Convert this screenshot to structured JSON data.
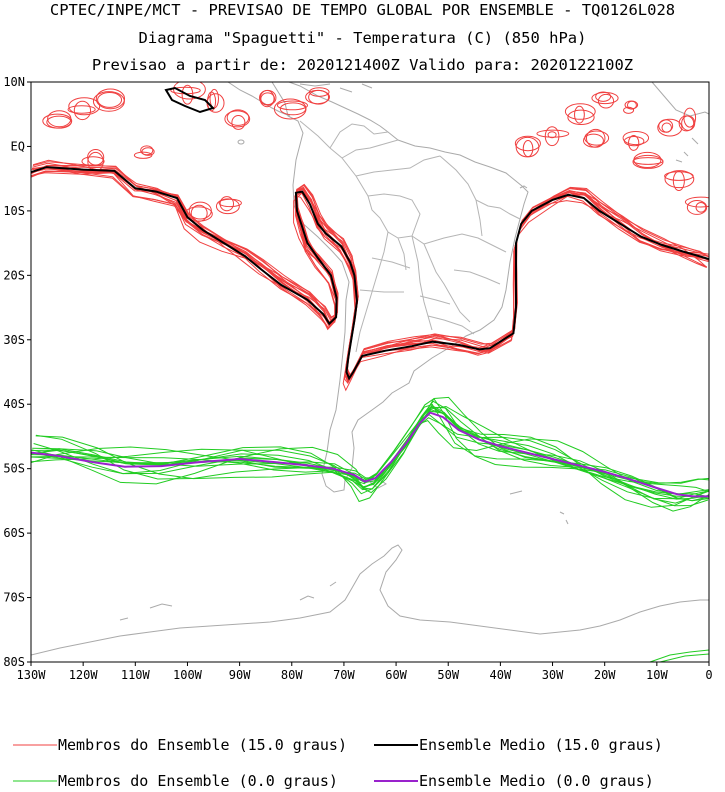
{
  "title": {
    "line1": "CPTEC/INPE/MCT - PREVISAO DE TEMPO GLOBAL POR ENSEMBLE - TQ0126L028",
    "line2": "Diagrama \"Spaguetti\" - Temperatura (C) (850 hPa)",
    "line3": "Previsao a partir de: 2020121400Z  Valido para: 2020122100Z"
  },
  "axes": {
    "lat_labels": [
      "10N",
      "EQ",
      "10S",
      "20S",
      "30S",
      "40S",
      "50S",
      "60S",
      "70S",
      "80S"
    ],
    "lat_values": [
      10,
      0,
      -10,
      -20,
      -30,
      -40,
      -50,
      -60,
      -70,
      -80
    ],
    "lon_labels": [
      "130W",
      "120W",
      "110W",
      "100W",
      "90W",
      "80W",
      "70W",
      "60W",
      "50W",
      "40W",
      "30W",
      "20W",
      "10W",
      "0"
    ],
    "lon_values": [
      -130,
      -120,
      -110,
      -100,
      -90,
      -80,
      -70,
      -60,
      -50,
      -40,
      -30,
      -20,
      -10,
      0
    ],
    "lon_range": [
      -130,
      0
    ],
    "lat_range": [
      -80,
      10
    ]
  },
  "colors": {
    "members_15": "#f04040",
    "mean_15": "#000000",
    "members_0": "#22cc22",
    "mean_0": "#9922cc",
    "coast": "#aaaaaa"
  },
  "legend": [
    {
      "label": "Membros do Ensemble (15.0 graus)",
      "color": "#f04040",
      "width": 1
    },
    {
      "label": "Ensemble Medio (15.0 graus)",
      "color": "#000000",
      "width": 2
    },
    {
      "label": "Membros do Ensemble (0.0 graus)",
      "color": "#22cc22",
      "width": 1
    },
    {
      "label": "Ensemble Medio (0.0 graus)",
      "color": "#9922cc",
      "width": 2
    }
  ],
  "chart_data": {
    "type": "spaghetti-map",
    "series": [
      {
        "name": "Ensemble Medio (15.0 graus)",
        "contour": 15.0,
        "points": [
          [
            -130,
            -4
          ],
          [
            -127,
            -3.2
          ],
          [
            -120,
            -3.6
          ],
          [
            -114,
            -3.8
          ],
          [
            -110,
            -6.5
          ],
          [
            -106,
            -7
          ],
          [
            -102,
            -8
          ],
          [
            -100,
            -11
          ],
          [
            -97,
            -13
          ],
          [
            -93,
            -15
          ],
          [
            -89,
            -17
          ],
          [
            -86,
            -19
          ],
          [
            -82,
            -21.5
          ],
          [
            -77,
            -23.8
          ],
          [
            -74,
            -26
          ],
          [
            -72.8,
            -27.5
          ],
          [
            -71.5,
            -26.5
          ],
          [
            -71.4,
            -23.5
          ],
          [
            -72.5,
            -20
          ],
          [
            -75,
            -17.3
          ],
          [
            -77,
            -15
          ],
          [
            -78,
            -12.5
          ],
          [
            -79,
            -10
          ],
          [
            -79.2,
            -7.2
          ],
          [
            -78,
            -7
          ],
          [
            -76.5,
            -9
          ],
          [
            -75,
            -12
          ],
          [
            -73.5,
            -13.5
          ],
          [
            -70.5,
            -15.5
          ],
          [
            -68.8,
            -18
          ],
          [
            -68,
            -20
          ],
          [
            -67.5,
            -24
          ],
          [
            -68,
            -27
          ],
          [
            -68.7,
            -30.5
          ],
          [
            -69.2,
            -33
          ],
          [
            -69.5,
            -35
          ],
          [
            -69,
            -36
          ],
          [
            -68.2,
            -35
          ],
          [
            -66.5,
            -32.5
          ],
          [
            -62,
            -31.7
          ],
          [
            -57,
            -31
          ],
          [
            -53,
            -30.3
          ],
          [
            -48,
            -30.8
          ],
          [
            -44,
            -31.5
          ],
          [
            -42,
            -31.3
          ],
          [
            -37.5,
            -29
          ],
          [
            -37,
            -25
          ],
          [
            -37,
            -20
          ],
          [
            -37,
            -15
          ],
          [
            -36,
            -12
          ],
          [
            -34,
            -10
          ],
          [
            -30,
            -8.3
          ],
          [
            -27,
            -7.5
          ],
          [
            -24,
            -8
          ],
          [
            -21,
            -10
          ],
          [
            -17,
            -12
          ],
          [
            -13,
            -14
          ],
          [
            -9,
            -15.3
          ],
          [
            -5,
            -16.3
          ],
          [
            -2,
            -17
          ],
          [
            0,
            -17.5
          ]
        ]
      },
      {
        "name": "Ensemble Medio (0.0 graus)",
        "contour": 0.0,
        "points": [
          [
            -130,
            -47.5
          ],
          [
            -125,
            -48
          ],
          [
            -118,
            -49
          ],
          [
            -112,
            -49.7
          ],
          [
            -105,
            -49.6
          ],
          [
            -98,
            -49
          ],
          [
            -90,
            -48.5
          ],
          [
            -83,
            -49
          ],
          [
            -77,
            -49.5
          ],
          [
            -72,
            -50
          ],
          [
            -68,
            -51
          ],
          [
            -66,
            -52
          ],
          [
            -64,
            -51.5
          ],
          [
            -61,
            -49
          ],
          [
            -58,
            -46
          ],
          [
            -55.5,
            -43
          ],
          [
            -53.5,
            -41.3
          ],
          [
            -51,
            -42
          ],
          [
            -48,
            -44
          ],
          [
            -44,
            -45.5
          ],
          [
            -40,
            -46.5
          ],
          [
            -35,
            -47.5
          ],
          [
            -30,
            -48.5
          ],
          [
            -25,
            -49.5
          ],
          [
            -20,
            -50.5
          ],
          [
            -15,
            -51.7
          ],
          [
            -10,
            -53
          ],
          [
            -6,
            -54
          ],
          [
            -3,
            -54.3
          ],
          [
            0,
            -54.3
          ]
        ]
      }
    ]
  }
}
